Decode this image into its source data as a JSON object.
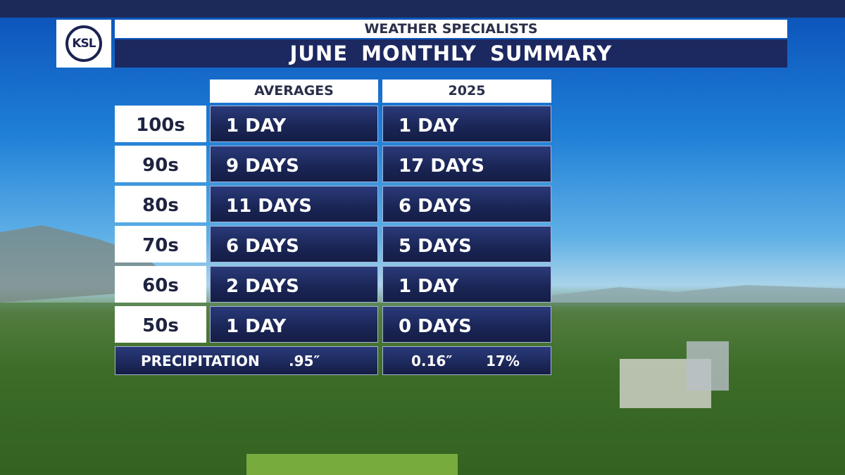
{
  "header": {
    "logo": "KSL",
    "subtitle": "WEATHER SPECIALISTS",
    "title": "JUNE MONTHLY SUMMARY"
  },
  "table": {
    "columns": [
      "AVERAGES",
      "2025"
    ],
    "rows": [
      [
        "100s",
        "1 DAY",
        "1 DAY"
      ],
      [
        "90s",
        "9 DAYS",
        "17 DAYS"
      ],
      [
        "80s",
        "11 DAYS",
        "6 DAYS"
      ],
      [
        "70s",
        "6 DAYS",
        "5 DAYS"
      ],
      [
        "60s",
        "2 DAYS",
        "1 DAY"
      ],
      [
        "50s",
        "1 DAY",
        "0 DAYS"
      ]
    ]
  },
  "precipitation": {
    "label": "PRECIPITATION",
    "average": ".95″",
    "year": "0.16″",
    "percent": "17%"
  }
}
